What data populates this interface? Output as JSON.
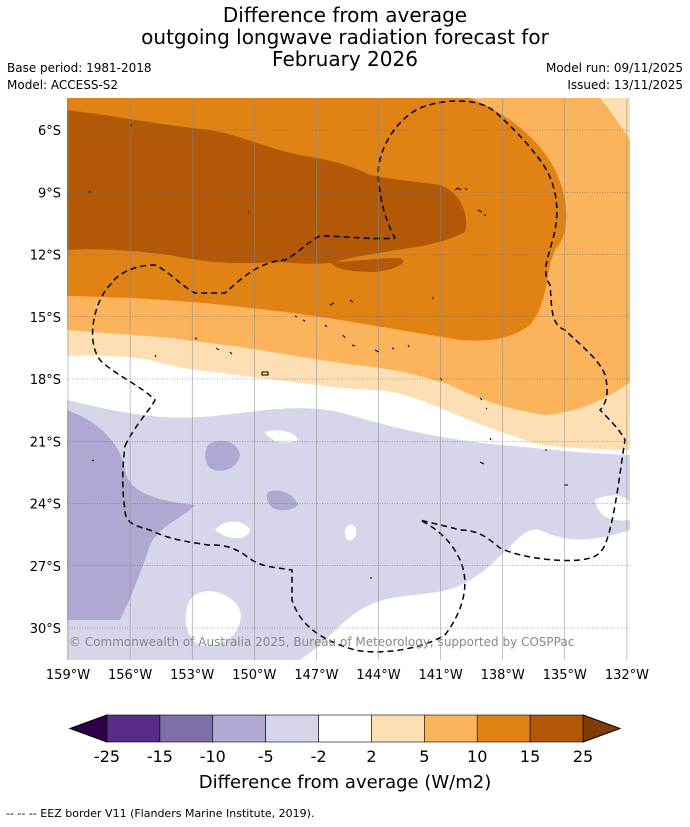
{
  "title": {
    "line1": "Difference from average",
    "line2": "outgoing longwave radiation forecast for",
    "line3": "February 2026"
  },
  "meta": {
    "base_period": "Base period: 1981-2018",
    "model": "Model: ACCESS-S2",
    "model_run": "Model run: 09/11/2025",
    "issued": "Issued: 13/11/2025"
  },
  "map": {
    "lat_labels": [
      "6°S",
      "9°S",
      "12°S",
      "15°S",
      "18°S",
      "21°S",
      "24°S",
      "27°S",
      "30°S"
    ],
    "lon_labels": [
      "159°W",
      "156°W",
      "153°W",
      "150°W",
      "147°W",
      "144°W",
      "141°W",
      "138°W",
      "135°W",
      "132°W"
    ],
    "copyright": "© Commonwealth of Australia 2025, Bureau of Meteorology, supported by COSPPac"
  },
  "colorbar": {
    "ticks": [
      "-25",
      "-15",
      "-10",
      "-5",
      "-2",
      "2",
      "5",
      "10",
      "15",
      "25"
    ],
    "colors": [
      "#5a2a8a",
      "#7e6fa8",
      "#b0a8d2",
      "#d6d6ea",
      "#ffffff",
      "#fddfb3",
      "#fbb35c",
      "#e08214",
      "#b35806"
    ],
    "under_color": "#2d004b",
    "over_color": "#7f3b08",
    "label": "Difference from average (W/m2)"
  },
  "footer": "--  --  -- EEZ border V11 (Flanders Marine Institute, 2019)."
}
